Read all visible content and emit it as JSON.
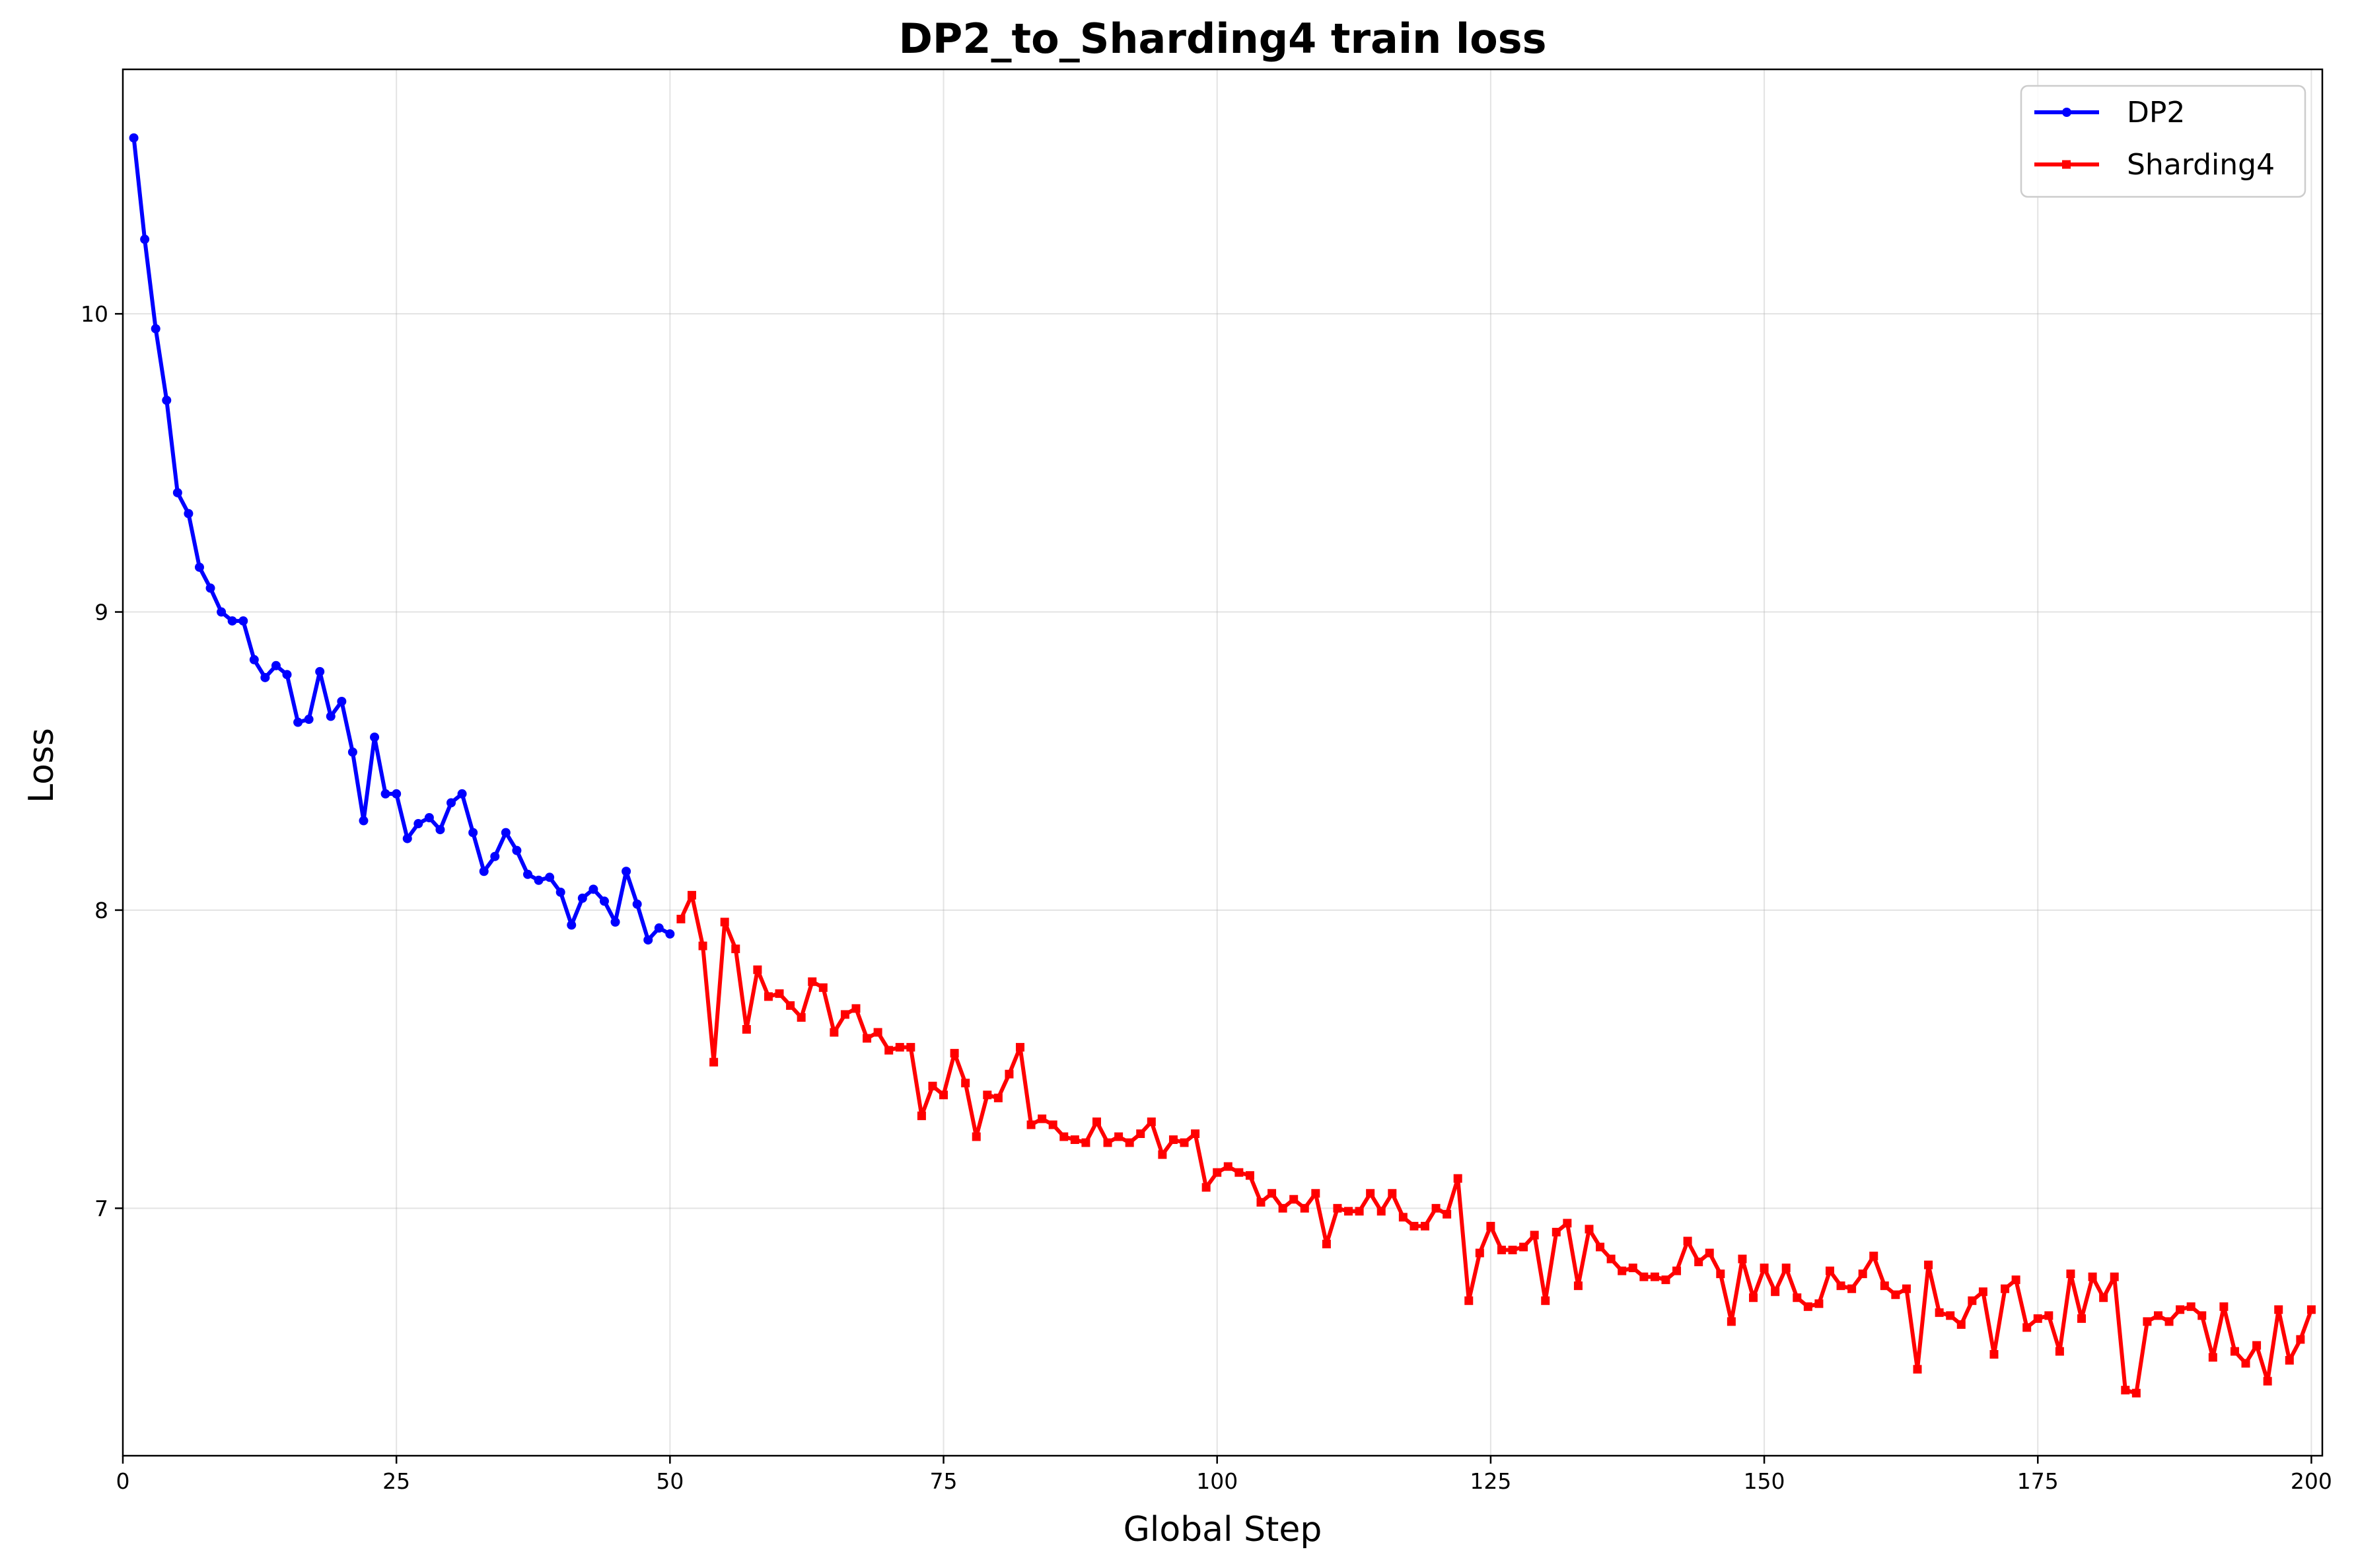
{
  "chart_data": {
    "type": "line",
    "title": "DP2_to_Sharding4 train loss",
    "xlabel": "Global Step",
    "ylabel": "Loss",
    "xlim": [
      0,
      201
    ],
    "ylim": [
      6.17,
      10.82
    ],
    "xticks": [
      0,
      25,
      50,
      75,
      100,
      125,
      150,
      175,
      200
    ],
    "yticks": [
      7,
      8,
      9,
      10
    ],
    "grid": true,
    "legend_position": "top-right",
    "series": [
      {
        "name": "DP2",
        "color": "#0000ff",
        "marker": "circle",
        "x": [
          1,
          2,
          3,
          4,
          5,
          6,
          7,
          8,
          9,
          10,
          11,
          12,
          13,
          14,
          15,
          16,
          17,
          18,
          19,
          20,
          21,
          22,
          23,
          24,
          25,
          26,
          27,
          28,
          29,
          30,
          31,
          32,
          33,
          34,
          35,
          36,
          37,
          38,
          39,
          40,
          41,
          42,
          43,
          44,
          45,
          46,
          47,
          48,
          49,
          50
        ],
        "y": [
          10.59,
          10.25,
          9.95,
          9.71,
          9.4,
          9.33,
          9.15,
          9.08,
          9.0,
          8.97,
          8.97,
          8.84,
          8.78,
          8.82,
          8.79,
          8.63,
          8.64,
          8.8,
          8.65,
          8.7,
          8.53,
          8.3,
          8.58,
          8.39,
          8.39,
          8.24,
          8.29,
          8.31,
          8.27,
          8.36,
          8.39,
          8.26,
          8.13,
          8.18,
          8.26,
          8.2,
          8.12,
          8.1,
          8.11,
          8.06,
          7.95,
          8.04,
          8.07,
          8.03,
          7.96,
          8.13,
          8.02,
          7.9,
          7.94,
          7.92
        ]
      },
      {
        "name": "Sharding4",
        "color": "#ff0000",
        "marker": "square",
        "x": [
          51,
          52,
          53,
          54,
          55,
          56,
          57,
          58,
          59,
          60,
          61,
          62,
          63,
          64,
          65,
          66,
          67,
          68,
          69,
          70,
          71,
          72,
          73,
          74,
          75,
          76,
          77,
          78,
          79,
          80,
          81,
          82,
          83,
          84,
          85,
          86,
          87,
          88,
          89,
          90,
          91,
          92,
          93,
          94,
          95,
          96,
          97,
          98,
          99,
          100,
          101,
          102,
          103,
          104,
          105,
          106,
          107,
          108,
          109,
          110,
          111,
          112,
          113,
          114,
          115,
          116,
          117,
          118,
          119,
          120,
          121,
          122,
          123,
          124,
          125,
          126,
          127,
          128,
          129,
          130,
          131,
          132,
          133,
          134,
          135,
          136,
          137,
          138,
          139,
          140,
          141,
          142,
          143,
          144,
          145,
          146,
          147,
          148,
          149,
          150,
          151,
          152,
          153,
          154,
          155,
          156,
          157,
          158,
          159,
          160,
          161,
          162,
          163,
          164,
          165,
          166,
          167,
          168,
          169,
          170,
          171,
          172,
          173,
          174,
          175,
          176,
          177,
          178,
          179,
          180,
          181,
          182,
          183,
          184,
          185,
          186,
          187,
          188,
          189,
          190,
          191,
          192,
          193,
          194,
          195,
          196,
          197,
          198,
          199,
          200
        ],
        "y": [
          7.97,
          8.05,
          7.88,
          7.49,
          7.96,
          7.87,
          7.6,
          7.8,
          7.71,
          7.72,
          7.68,
          7.64,
          7.76,
          7.74,
          7.59,
          7.65,
          7.67,
          7.57,
          7.59,
          7.53,
          7.54,
          7.54,
          7.31,
          7.41,
          7.38,
          7.52,
          7.42,
          7.24,
          7.38,
          7.37,
          7.45,
          7.54,
          7.28,
          7.3,
          7.28,
          7.24,
          7.23,
          7.22,
          7.29,
          7.22,
          7.24,
          7.22,
          7.25,
          7.29,
          7.18,
          7.23,
          7.22,
          7.25,
          7.07,
          7.12,
          7.14,
          7.12,
          7.11,
          7.02,
          7.05,
          7.0,
          7.03,
          7.0,
          7.05,
          6.88,
          7.0,
          6.99,
          6.99,
          7.05,
          6.99,
          7.05,
          6.97,
          6.94,
          6.94,
          7.0,
          6.98,
          7.1,
          6.69,
          6.85,
          6.94,
          6.86,
          6.86,
          6.87,
          6.91,
          6.69,
          6.92,
          6.95,
          6.74,
          6.93,
          6.87,
          6.83,
          6.79,
          6.8,
          6.77,
          6.77,
          6.76,
          6.79,
          6.89,
          6.82,
          6.85,
          6.78,
          6.62,
          6.83,
          6.7,
          6.8,
          6.72,
          6.8,
          6.7,
          6.67,
          6.68,
          6.79,
          6.74,
          6.73,
          6.78,
          6.84,
          6.74,
          6.71,
          6.73,
          6.46,
          6.81,
          6.65,
          6.64,
          6.61,
          6.69,
          6.72,
          6.51,
          6.73,
          6.76,
          6.6,
          6.63,
          6.64,
          6.52,
          6.78,
          6.63,
          6.77,
          6.7,
          6.77,
          6.39,
          6.38,
          6.62,
          6.64,
          6.62,
          6.66,
          6.67,
          6.64,
          6.5,
          6.67,
          6.52,
          6.48,
          6.54,
          6.42,
          6.66,
          6.49,
          6.56,
          6.66
        ]
      }
    ]
  }
}
